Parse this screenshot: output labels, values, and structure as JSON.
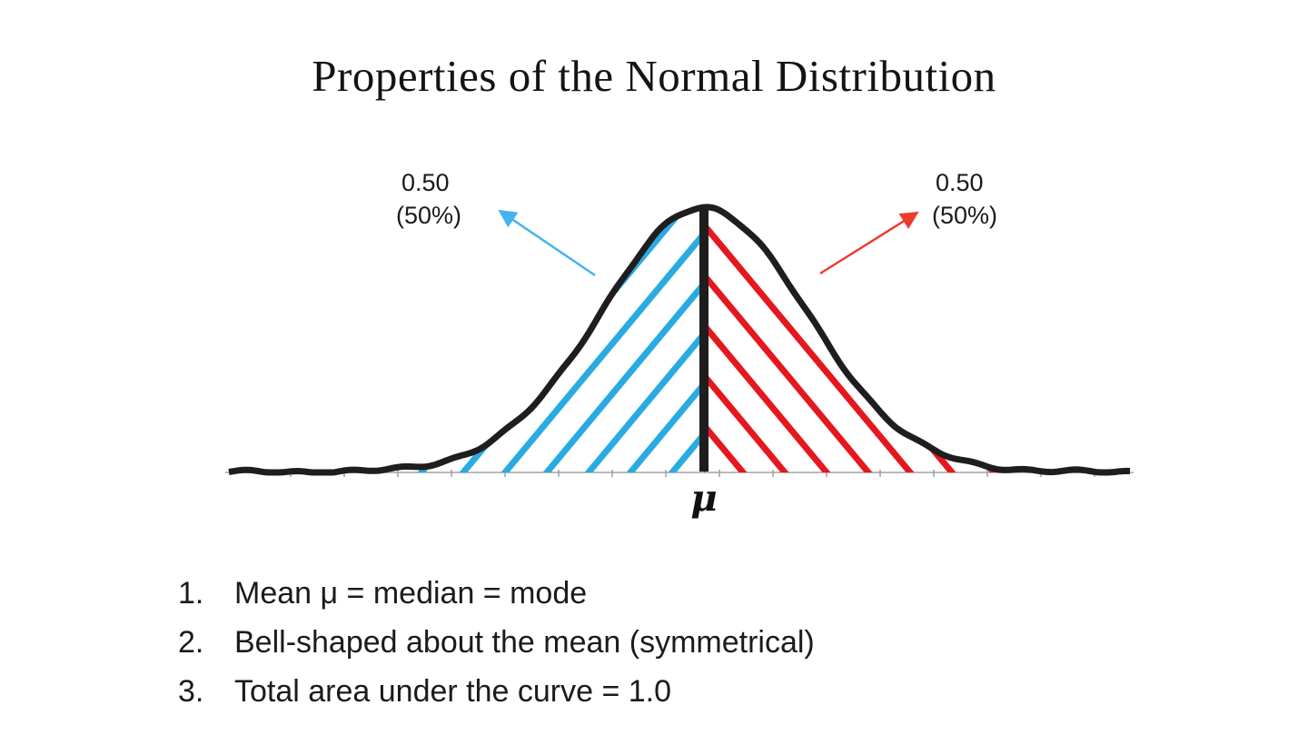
{
  "slide": {
    "title": "Properties of the Normal Distribution"
  },
  "figure": {
    "mean_label": "μ",
    "left_annotation": {
      "value": "0.50",
      "percent": "(50%)"
    },
    "right_annotation": {
      "value": "0.50",
      "percent": "(50%)"
    },
    "colors": {
      "left_hatch": "#29abe2",
      "right_hatch": "#e5171f",
      "curve": "#1f1d1d",
      "left_arrow": "#45b3ef",
      "right_arrow": "#ef3b2d"
    }
  },
  "properties_list": {
    "items": [
      {
        "number": "1.",
        "text": "Mean μ = median = mode"
      },
      {
        "number": "2.",
        "text": "Bell-shaped about the mean (symmetrical)"
      },
      {
        "number": "3.",
        "text": "Total area under the curve = 1.0"
      }
    ]
  },
  "chart_data": {
    "type": "area",
    "title": "Properties of the Normal Distribution",
    "curve": "normal (bell-shaped) distribution, symmetrical about the mean",
    "center_label": "μ",
    "regions": [
      {
        "side": "left",
        "area": 0.5,
        "label": "0.50 (50%)",
        "color": "#29abe2"
      },
      {
        "side": "right",
        "area": 0.5,
        "label": "0.50 (50%)",
        "color": "#e5171f"
      }
    ],
    "total_area": 1.0
  }
}
